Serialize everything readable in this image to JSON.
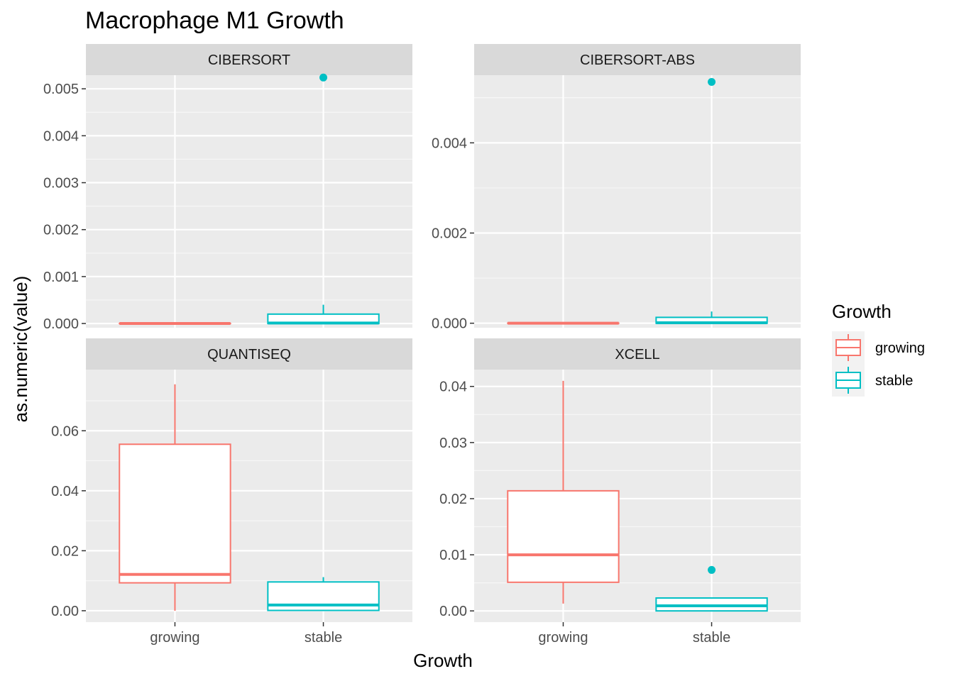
{
  "chart_data": {
    "type": "box",
    "title": "Macrophage M1 Growth",
    "xlabel": "Growth",
    "ylabel": "as.numeric(value)",
    "categories": [
      "growing",
      "stable"
    ],
    "legend": {
      "title": "Growth",
      "placement": "right",
      "entries": [
        {
          "name": "growing",
          "color": "#F8766D"
        },
        {
          "name": "stable",
          "color": "#00BFC4"
        }
      ]
    },
    "grid": true,
    "panels": [
      {
        "name": "CIBERSORT",
        "ylim": [
          -9e-05,
          0.00529
        ],
        "yticks": [
          0,
          0.001,
          0.002,
          0.003,
          0.004,
          0.005
        ],
        "ytick_labels": [
          "0.000",
          "0.001",
          "0.002",
          "0.003",
          "0.004",
          "0.005"
        ],
        "boxes": [
          {
            "category": "growing",
            "q1": 0,
            "median": 0,
            "q3": 0,
            "whisker_low": 0,
            "whisker_high": 0,
            "outliers": []
          },
          {
            "category": "stable",
            "q1": 0,
            "median": 1e-05,
            "q3": 0.0002,
            "whisker_low": 0,
            "whisker_high": 0.0004,
            "outliers": [
              0.00524
            ]
          }
        ]
      },
      {
        "name": "CIBERSORT-ABS",
        "ylim": [
          -0.0001,
          0.0055
        ],
        "yticks": [
          0,
          0.002,
          0.004
        ],
        "ytick_labels": [
          "0.000",
          "0.002",
          "0.004"
        ],
        "boxes": [
          {
            "category": "growing",
            "q1": 0,
            "median": 0,
            "q3": 0,
            "whisker_low": 0,
            "whisker_high": 0,
            "outliers": []
          },
          {
            "category": "stable",
            "q1": 0,
            "median": 1e-05,
            "q3": 0.00013,
            "whisker_low": 0,
            "whisker_high": 0.00026,
            "outliers": [
              0.00535
            ]
          }
        ]
      },
      {
        "name": "QUANTISEQ",
        "ylim": [
          -0.0038,
          0.0804
        ],
        "yticks": [
          0,
          0.02,
          0.04,
          0.06
        ],
        "ytick_labels": [
          "0.00",
          "0.02",
          "0.04",
          "0.06"
        ],
        "boxes": [
          {
            "category": "growing",
            "q1": 0.0093,
            "median": 0.0121,
            "q3": 0.0555,
            "whisker_low": 0,
            "whisker_high": 0.0755,
            "outliers": []
          },
          {
            "category": "stable",
            "q1": 0.0001,
            "median": 0.0019,
            "q3": 0.0096,
            "whisker_low": 0,
            "whisker_high": 0.0112,
            "outliers": []
          }
        ]
      },
      {
        "name": "XCELL",
        "ylim": [
          -0.002,
          0.043
        ],
        "yticks": [
          0,
          0.01,
          0.02,
          0.03,
          0.04
        ],
        "ytick_labels": [
          "0.00",
          "0.01",
          "0.02",
          "0.03",
          "0.04"
        ],
        "boxes": [
          {
            "category": "growing",
            "q1": 0.0051,
            "median": 0.01,
            "q3": 0.0214,
            "whisker_low": 0.0013,
            "whisker_high": 0.041,
            "outliers": []
          },
          {
            "category": "stable",
            "q1": 0,
            "median": 0.0009,
            "q3": 0.0023,
            "whisker_low": 0,
            "whisker_high": 0.0023,
            "outliers": [
              0.0073
            ]
          }
        ]
      }
    ]
  }
}
